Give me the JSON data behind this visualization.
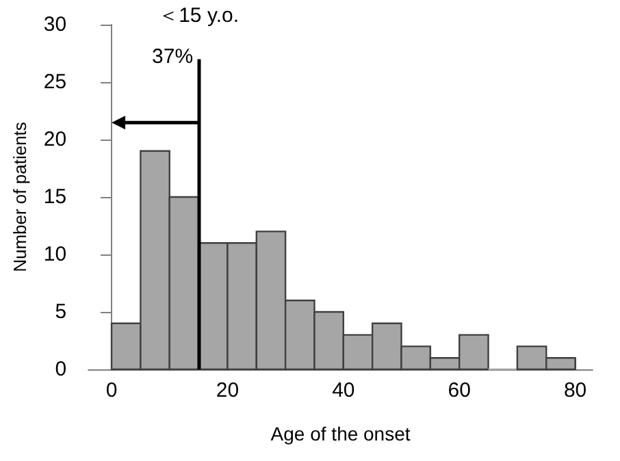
{
  "chart_data": {
    "type": "histogram",
    "xlabel": "Age of the onset",
    "ylabel": "Number of patients",
    "bins": [
      0,
      5,
      10,
      15,
      20,
      25,
      30,
      35,
      40,
      45,
      50,
      55,
      60,
      65,
      70,
      75,
      80
    ],
    "values": [
      4,
      19,
      15,
      11,
      11,
      12,
      6,
      5,
      3,
      4,
      2,
      1,
      3,
      0,
      2,
      1
    ],
    "color": "#a6a6a6",
    "xlim": [
      -4,
      83
    ],
    "xticks": [
      0,
      20,
      40,
      60,
      80
    ],
    "ylim": [
      0,
      30
    ],
    "yticks": [
      0,
      5,
      10,
      15,
      20,
      25,
      30
    ],
    "ref_lines": [
      {
        "axis": "x",
        "value": 15,
        "color": "#000000"
      }
    ],
    "annotations": [
      "＜15 y.o.",
      "37%"
    ],
    "grid": false
  }
}
